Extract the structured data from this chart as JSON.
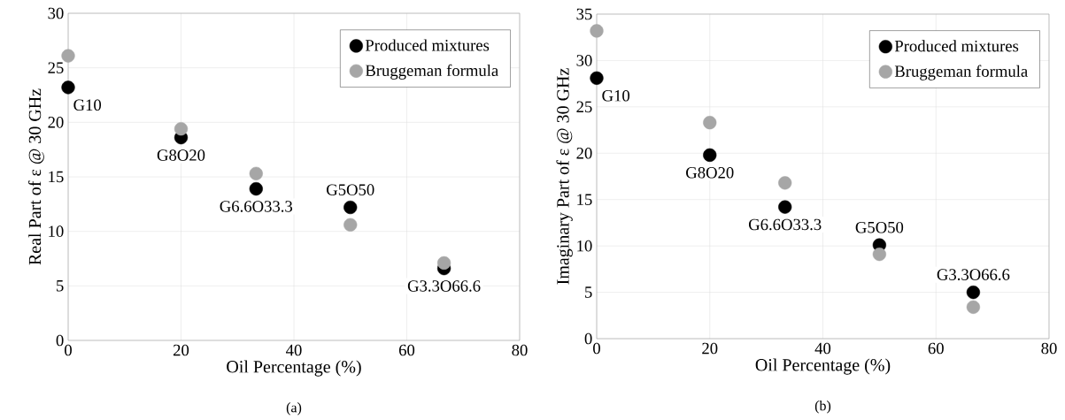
{
  "chart_data": [
    {
      "type": "scatter",
      "xlabel": "Oil Percentage (%)",
      "ylabel": "Real Part of ε @ 30 GHz",
      "x": [
        0,
        20,
        33.3,
        50,
        66.6
      ],
      "series": [
        {
          "name": "Produced mixtures",
          "color": "#000000",
          "values": [
            23.2,
            18.6,
            13.9,
            12.2,
            6.6
          ]
        },
        {
          "name": "Bruggeman formula",
          "color": "#a6a6a6",
          "values": [
            26.1,
            19.4,
            15.3,
            10.6,
            7.1
          ]
        }
      ],
      "xlim": [
        0,
        80
      ],
      "xticks": [
        0,
        20,
        40,
        60,
        80
      ],
      "ylim": [
        0,
        30
      ],
      "yticks": [
        0,
        5,
        10,
        15,
        20,
        25,
        30
      ],
      "grid": true,
      "legend": "top right",
      "marker": "circle",
      "annotations": [
        {
          "text": "G10",
          "x": 0,
          "y": 23.2
        },
        {
          "text": "G8O20",
          "x": 20,
          "y": 18.6
        },
        {
          "text": "G6.6O33.3",
          "x": 33.3,
          "y": 13.9
        },
        {
          "text": "G5O50",
          "x": 50,
          "y": 12.2
        },
        {
          "text": "G3.3O66.6",
          "x": 66.6,
          "y": 6.6
        },
        "(a)"
      ]
    },
    {
      "type": "scatter",
      "xlabel": "Oil Percentage (%)",
      "ylabel": "Imaginary Part of ε @ 30 GHz",
      "x": [
        0,
        20,
        33.3,
        50,
        66.6
      ],
      "series": [
        {
          "name": "Produced mixtures",
          "color": "#000000",
          "values": [
            28.1,
            19.8,
            14.2,
            10.1,
            5.0
          ]
        },
        {
          "name": "Bruggeman formula",
          "color": "#a6a6a6",
          "values": [
            33.2,
            23.3,
            16.8,
            9.1,
            3.4
          ]
        }
      ],
      "xlim": [
        0,
        80
      ],
      "xticks": [
        0,
        20,
        40,
        60,
        80
      ],
      "ylim": [
        0,
        35
      ],
      "yticks": [
        0,
        5,
        10,
        15,
        20,
        25,
        30,
        35
      ],
      "grid": true,
      "legend": "top right",
      "marker": "circle",
      "annotations": [
        {
          "text": "G10",
          "x": 0,
          "y": 28.1
        },
        {
          "text": "G8O20",
          "x": 20,
          "y": 19.8
        },
        {
          "text": "G6.6O33.3",
          "x": 33.3,
          "y": 14.2
        },
        {
          "text": "G5O50",
          "x": 50,
          "y": 10.1
        },
        {
          "text": "G3.3O66.6",
          "x": 66.6,
          "y": 5.0
        },
        "(b)"
      ]
    }
  ]
}
